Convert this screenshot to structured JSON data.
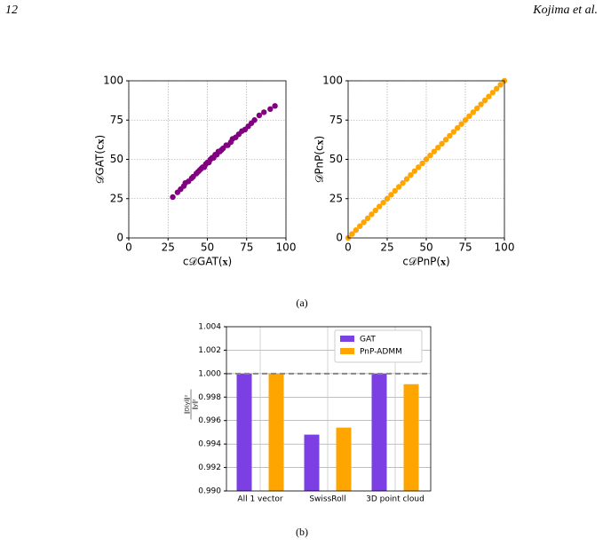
{
  "header": {
    "page_number": "12",
    "authors": "Kojima et al."
  },
  "captions": [
    "(a)",
    "(b)"
  ],
  "chart_data": [
    {
      "type": "scatter",
      "xlabel": "c𝒟GAT(𝐱)",
      "ylabel": "𝒟GAT(c𝐱)",
      "color": "#800080",
      "x": [
        28,
        31,
        33,
        35,
        36,
        38,
        40,
        41,
        43,
        44,
        45,
        46,
        47,
        48,
        49,
        50,
        51,
        52,
        53,
        54,
        55,
        56,
        57,
        58,
        59,
        60,
        62,
        63,
        65,
        66,
        68,
        70,
        72,
        74,
        76,
        78,
        80,
        83,
        86,
        90,
        93
      ],
      "values": [
        26,
        29,
        31,
        33,
        35,
        36,
        38,
        39,
        41,
        42,
        43,
        44,
        45,
        45,
        47,
        48,
        48,
        50,
        51,
        51,
        53,
        53,
        55,
        55,
        56,
        57,
        59,
        59,
        61,
        63,
        64,
        66,
        68,
        69,
        71,
        73,
        75,
        78,
        80,
        82,
        84
      ],
      "xlim": [
        0,
        100
      ],
      "ylim": [
        0,
        100
      ],
      "xticks": [
        0,
        25,
        50,
        75,
        100
      ],
      "yticks": [
        0,
        25,
        50,
        75,
        100
      ],
      "grid": true
    },
    {
      "type": "scatter",
      "xlabel": "c𝒟PnP(𝐱)",
      "ylabel": "𝒟PnP(c𝐱)",
      "color": "#ffa500",
      "x": [
        0,
        2.5,
        5,
        7.5,
        10,
        12.5,
        15,
        17.5,
        20,
        22.5,
        25,
        27.5,
        30,
        32.5,
        35,
        37.5,
        40,
        42.5,
        45,
        47.5,
        50,
        52.5,
        55,
        57.5,
        60,
        62.5,
        65,
        67.5,
        70,
        72.5,
        75,
        77.5,
        80,
        82.5,
        85,
        87.5,
        90,
        92.5,
        95,
        97.5,
        100
      ],
      "values": [
        0,
        2.5,
        5,
        7.5,
        10,
        12.5,
        15,
        17.5,
        20,
        22.5,
        25,
        27.5,
        30,
        32.5,
        35,
        37.5,
        40,
        42.5,
        45,
        47.5,
        50,
        52.5,
        55,
        57.5,
        60,
        62.5,
        65,
        67.5,
        70,
        72.5,
        75,
        77.5,
        80,
        82.5,
        85,
        87.5,
        90,
        92.5,
        95,
        97.5,
        100
      ],
      "xlim": [
        0,
        100
      ],
      "ylim": [
        0,
        100
      ],
      "xticks": [
        0,
        25,
        50,
        75,
        100
      ],
      "yticks": [
        0,
        25,
        50,
        75,
        100
      ],
      "grid": true
    },
    {
      "type": "bar",
      "ylabel": {
        "numerator": "‖D(y)‖²",
        "denominator": "‖y‖²"
      },
      "categories": [
        "All 1 vector",
        "SwissRoll",
        "3D point cloud"
      ],
      "series": [
        {
          "name": "GAT",
          "color": "#7b3fe4",
          "values": [
            1.0,
            0.9948,
            1.0
          ]
        },
        {
          "name": "PnP-ADMM",
          "color": "#ffa500",
          "values": [
            1.0,
            0.9954,
            0.9991
          ]
        }
      ],
      "hline": 1.0,
      "ylim": [
        0.99,
        1.004
      ],
      "yticks": [
        {
          "value": 0.99,
          "label": "0.990"
        },
        {
          "value": 0.992,
          "label": "0.992"
        },
        {
          "value": 0.994,
          "label": "0.994"
        },
        {
          "value": 0.996,
          "label": "0.996"
        },
        {
          "value": 0.998,
          "label": "0.998"
        },
        {
          "value": 1.0,
          "label": "1.000"
        },
        {
          "value": 1.002,
          "label": "1.002"
        },
        {
          "value": 1.004,
          "label": "1.004"
        }
      ],
      "grid": true,
      "legend": "upper right"
    }
  ]
}
